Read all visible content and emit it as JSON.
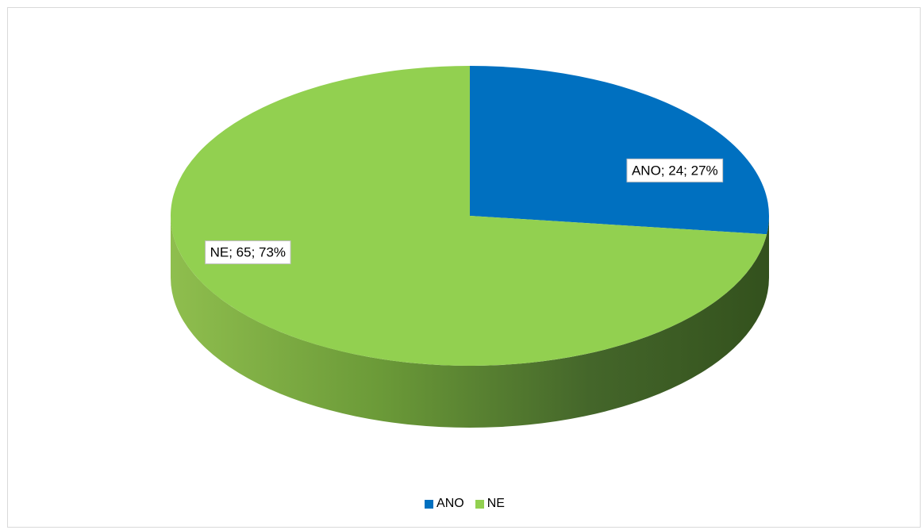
{
  "chart_data": {
    "type": "pie",
    "style": "3d",
    "title": "",
    "slices": [
      {
        "name": "ANO",
        "value": 24,
        "percent": 27,
        "label": "ANO; 24; 27%",
        "color": "#0070c0"
      },
      {
        "name": "NE",
        "value": 65,
        "percent": 73,
        "label": "NE; 65; 73%",
        "color": "#92d050"
      }
    ],
    "legend": {
      "position": "bottom",
      "entries": [
        "ANO",
        "NE"
      ]
    }
  }
}
